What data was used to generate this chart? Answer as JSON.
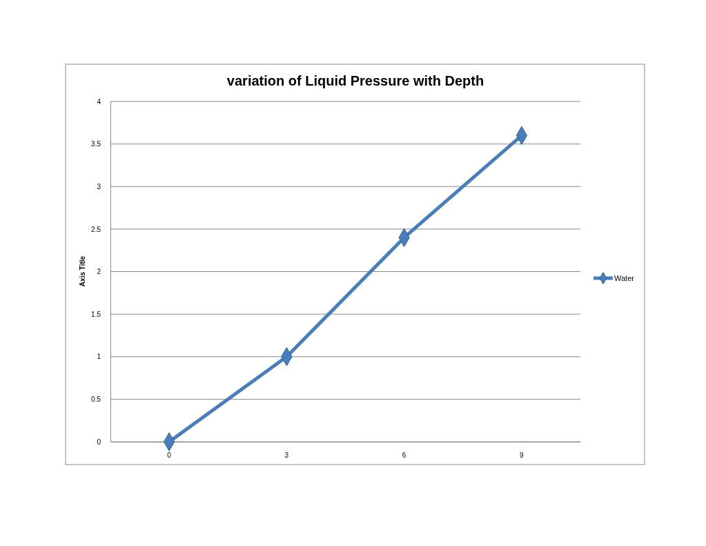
{
  "chart_data": {
    "type": "line",
    "title": "variation of Liquid Pressure with Depth",
    "ylabel": "Axis Title",
    "categories": [
      "0",
      "3",
      "6",
      "9"
    ],
    "series": [
      {
        "name": "Water",
        "color": "#4a7ebb",
        "values": [
          0,
          1,
          2.4,
          3.6
        ]
      }
    ],
    "ylim": [
      0,
      4
    ],
    "yticks": [
      0,
      0.5,
      1,
      1.5,
      2,
      2.5,
      3,
      3.5,
      4
    ],
    "grid": "y",
    "legend": "right",
    "marker": "diamond",
    "line_style": "solid"
  }
}
